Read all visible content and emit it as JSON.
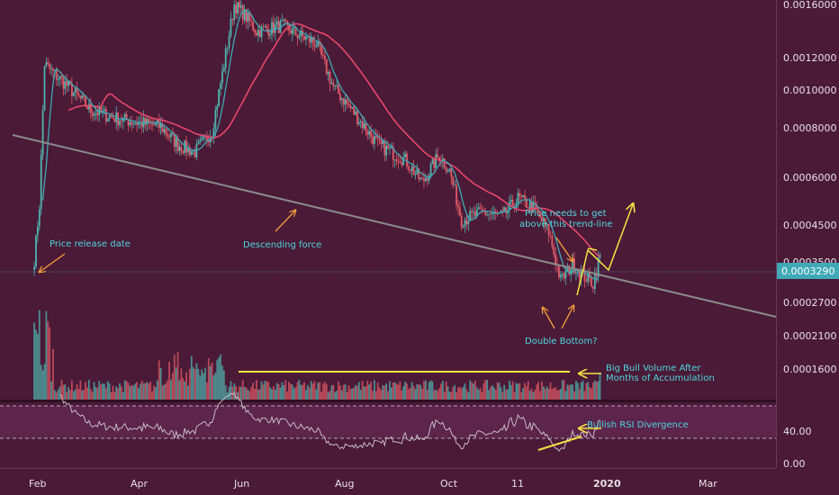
{
  "chart_data": {
    "type": "candlestick",
    "title": "",
    "colors": {
      "background": "#4a1a37",
      "up": "#4fb3ad",
      "down": "#e05a66",
      "ma_slow": "#e8476a",
      "ma_fast": "#3fa9b5",
      "trendline": "#8a8a8a",
      "annotation_arrow": "#f7a13b",
      "highlight": "#f4e542",
      "rsi_line": "#c8c8c8",
      "annotation_text": "#4fd6dc",
      "price_label_bg": "#3fa9b5"
    },
    "price_axis": {
      "scale": "log",
      "ticks": [
        "0.0016000",
        "0.0012000",
        "0.0010000",
        "0.0008000",
        "0.0006000",
        "0.0004500",
        "0.0003500",
        "0.0002700",
        "0.0002100",
        "0.0001600"
      ],
      "tick_values": [
        0.0016,
        0.0012,
        0.001,
        0.0008,
        0.0006,
        0.00045,
        0.00035,
        0.00027,
        0.00021,
        0.00016
      ],
      "current_price_label": "0.0003290",
      "current_price": 0.000329
    },
    "rsi_axis": {
      "ticks": [
        "40.00",
        "0.00"
      ],
      "tick_values": [
        40,
        0
      ],
      "band_upper": 70,
      "band_lower": 30
    },
    "x_axis": {
      "labels": [
        "Feb",
        "Apr",
        "Jun",
        "Aug",
        "Oct",
        "11",
        "2020",
        "Mar"
      ],
      "bold_label": "2020"
    },
    "price_series": {
      "name": "",
      "control_points": [
        [
          "2019-01-31",
          0.00032
        ],
        [
          "2019-02-03",
          0.00045
        ],
        [
          "2019-02-06",
          0.0011
        ],
        [
          "2019-02-10",
          0.00105
        ],
        [
          "2019-02-20",
          0.00095
        ],
        [
          "2019-03-05",
          0.00082
        ],
        [
          "2019-03-20",
          0.00078
        ],
        [
          "2019-04-01",
          0.00076
        ],
        [
          "2019-04-15",
          0.00074
        ],
        [
          "2019-04-25",
          0.00066
        ],
        [
          "2019-05-05",
          0.00063
        ],
        [
          "2019-05-15",
          0.00072
        ],
        [
          "2019-05-22",
          0.0011
        ],
        [
          "2019-05-28",
          0.0016
        ],
        [
          "2019-06-03",
          0.0015
        ],
        [
          "2019-06-10",
          0.00135
        ],
        [
          "2019-06-25",
          0.0014
        ],
        [
          "2019-07-05",
          0.00132
        ],
        [
          "2019-07-15",
          0.00125
        ],
        [
          "2019-07-25",
          0.00095
        ],
        [
          "2019-08-05",
          0.00082
        ],
        [
          "2019-08-20",
          0.00066
        ],
        [
          "2019-09-05",
          0.0006
        ],
        [
          "2019-09-15",
          0.00052
        ],
        [
          "2019-09-25",
          0.00062
        ],
        [
          "2019-10-01",
          0.00056
        ],
        [
          "2019-10-08",
          0.00041
        ],
        [
          "2019-10-20",
          0.00043
        ],
        [
          "2019-11-01",
          0.00042
        ],
        [
          "2019-11-10",
          0.00047
        ],
        [
          "2019-11-20",
          0.00044
        ],
        [
          "2019-11-28",
          0.00038
        ],
        [
          "2019-12-05",
          0.00028
        ],
        [
          "2019-12-12",
          0.00031
        ],
        [
          "2019-12-18",
          0.00029
        ],
        [
          "2019-12-24",
          0.000275
        ],
        [
          "2019-12-28",
          0.000329
        ]
      ]
    },
    "annotations": [
      {
        "text": "Price release date"
      },
      {
        "text": "Descending force"
      },
      {
        "text": "Price needs to get"
      },
      {
        "text": "above this trend-line"
      },
      {
        "text": "Double Bottom?"
      },
      {
        "text": "Big Bull Volume After"
      },
      {
        "text": "Months of Accumulation"
      },
      {
        "text": "Bullish RSI Divergence"
      }
    ]
  }
}
